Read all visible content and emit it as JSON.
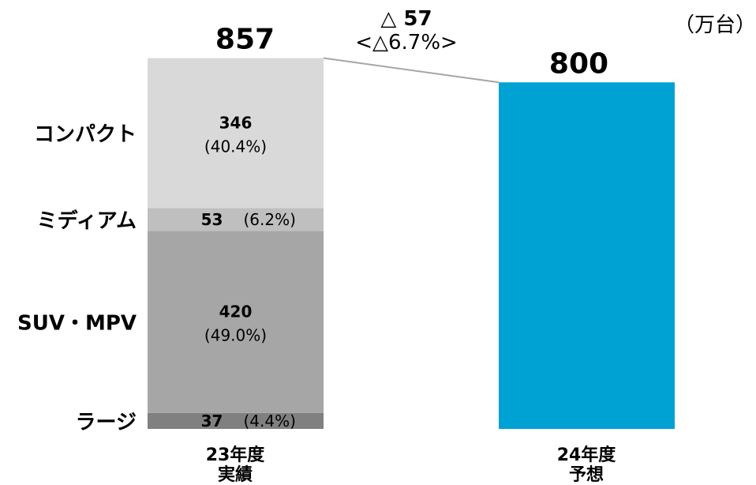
{
  "chart_data": {
    "type": "bar",
    "stacked": true,
    "unit_label": "（万台）",
    "change": {
      "label": "△ 57",
      "percent_label": "<△6.7%>"
    },
    "categories": [
      {
        "line1": "23年度",
        "line2": "実績",
        "total": 857,
        "total_label": "857"
      },
      {
        "line1": "24年度",
        "line2": "予想",
        "total": 800,
        "total_label": "800"
      }
    ],
    "segments": [
      {
        "name": "ラージ",
        "value": 37,
        "value_label": "37",
        "pct_label": "(4.4%)",
        "color": "#808080"
      },
      {
        "name": "SUV・MPV",
        "value": 420,
        "value_label": "420",
        "pct_label": "(49.0%)",
        "color": "#a6a6a6"
      },
      {
        "name": "ミディアム",
        "value": 53,
        "value_label": "53",
        "pct_label": "(6.2%)",
        "color": "#bfbfbf"
      },
      {
        "name": "コンパクト",
        "value": 346,
        "value_label": "346",
        "pct_label": "(40.4%)",
        "color": "#d9d9d9"
      }
    ],
    "forecast_color": "#00a2d4",
    "connector_color": "#a6a6a6"
  }
}
